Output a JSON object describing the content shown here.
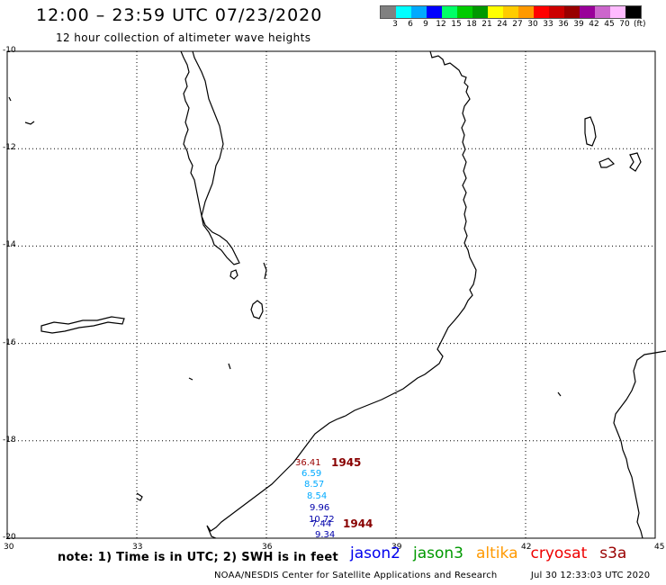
{
  "header": {
    "title": "12:00 – 23:59 UTC 07/23/2020",
    "subtitle": "12 hour collection of altimeter wave heights"
  },
  "colorbar": {
    "colors": [
      "#808080",
      "#00ffff",
      "#00aaff",
      "#0000ff",
      "#00ff66",
      "#00cc00",
      "#009900",
      "#ffff00",
      "#ffcc00",
      "#ff9900",
      "#ff0000",
      "#cc0000",
      "#990000",
      "#990099",
      "#cc66cc",
      "#ffbbff",
      "#000000"
    ],
    "labels": [
      "3",
      "6",
      "9",
      "12",
      "15",
      "18",
      "21",
      "24",
      "27",
      "30",
      "33",
      "36",
      "39",
      "42",
      "45",
      "70"
    ],
    "unit": "(ft)"
  },
  "axes": {
    "lat_labels": [
      "-10",
      "-12",
      "-14",
      "-16",
      "-18",
      "-20"
    ],
    "lon_labels": [
      "30",
      "33",
      "36",
      "39",
      "42",
      "45"
    ]
  },
  "observations": [
    {
      "value": "36.41",
      "color": "#990000"
    },
    {
      "value": "6.59",
      "color": "#00aaff"
    },
    {
      "value": "8.57",
      "color": "#00aaff"
    },
    {
      "value": "8.54",
      "color": "#00aaff"
    },
    {
      "value": "9.96",
      "color": "#0000aa"
    },
    {
      "value": "10.72",
      "color": "#0000aa"
    },
    {
      "value": "7.44",
      "color": "#0000aa"
    },
    {
      "value": "9.34",
      "color": "#0000aa"
    }
  ],
  "pass_times": [
    {
      "value": "1945",
      "color": "#880000"
    },
    {
      "value": "1944",
      "color": "#880000"
    }
  ],
  "note": "note:  1) Time is in UTC;  2) SWH is in feet",
  "legend": [
    {
      "label": "jason2",
      "color": "#0000ee"
    },
    {
      "label": "jason3",
      "color": "#009900"
    },
    {
      "label": "altika",
      "color": "#ff9900"
    },
    {
      "label": "cryosat",
      "color": "#ee0000"
    },
    {
      "label": "s3a",
      "color": "#990000"
    }
  ],
  "footer": {
    "credit": "NOAA/NESDIS Center for Satellite Applications and Research",
    "timestamp": "Jul 30 12:33:03 UTC 2020"
  }
}
